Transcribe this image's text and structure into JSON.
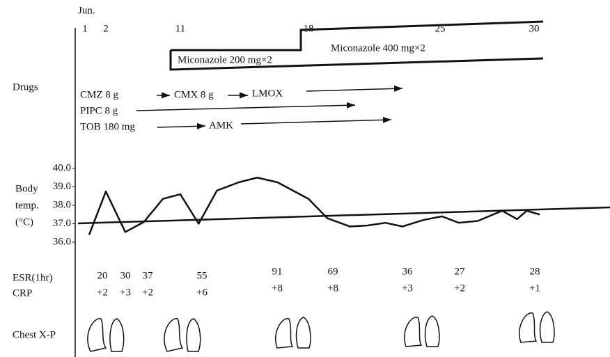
{
  "chart_data": {
    "type": "line",
    "month": "Jun.",
    "xticks": [
      1,
      2,
      11,
      18,
      25,
      30
    ],
    "y_label": [
      "Body",
      "temp.",
      "(°C)"
    ],
    "ylim": [
      36,
      40
    ],
    "yticks": [
      {
        "value": 40,
        "label": "40.0"
      },
      {
        "value": 39,
        "label": "39.0"
      },
      {
        "value": 38,
        "label": "38.0"
      },
      {
        "value": 37,
        "label": "37.0"
      },
      {
        "value": 36,
        "label": "36.0"
      }
    ],
    "x": [
      1.2,
      2.0,
      4.35,
      6.6,
      8.9,
      11.0,
      12.0,
      13.0,
      14.2,
      15.2,
      16.3,
      18.0,
      19.0,
      20.2,
      21.1,
      22.1,
      23.0,
      24.1,
      25.1,
      26.0,
      27.0,
      28.3,
      29.1,
      29.6,
      30.3
    ],
    "values": [
      36.4,
      38.75,
      36.55,
      37.1,
      38.35,
      38.6,
      37.0,
      38.8,
      39.25,
      39.5,
      39.25,
      38.35,
      37.3,
      36.85,
      36.9,
      37.05,
      36.85,
      37.2,
      37.4,
      37.05,
      37.15,
      37.7,
      37.25,
      37.7,
      37.5
    ],
    "color": "#111"
  },
  "drugs": {
    "label": "Drugs",
    "miconazole": [
      "Miconazole 200 mg×2",
      "Miconazole 400 mg×2"
    ],
    "row1": [
      "CMZ 8 g",
      "CMX 8 g",
      "LMOX"
    ],
    "row2": [
      "PIPC 8 g"
    ],
    "row3": [
      "TOB 180 mg",
      "AMK"
    ]
  },
  "labs": {
    "esr_label": "ESR(1hr)",
    "crp_label": "CRP",
    "esr": [
      "20",
      "30",
      "37",
      "55",
      "91",
      "69",
      "36",
      "27",
      "28"
    ],
    "crp": [
      "+2",
      "+3",
      "+2",
      "+6",
      "+8",
      "+8",
      "+3",
      "+2",
      "+1"
    ]
  },
  "chest_label": "Chest X-P"
}
